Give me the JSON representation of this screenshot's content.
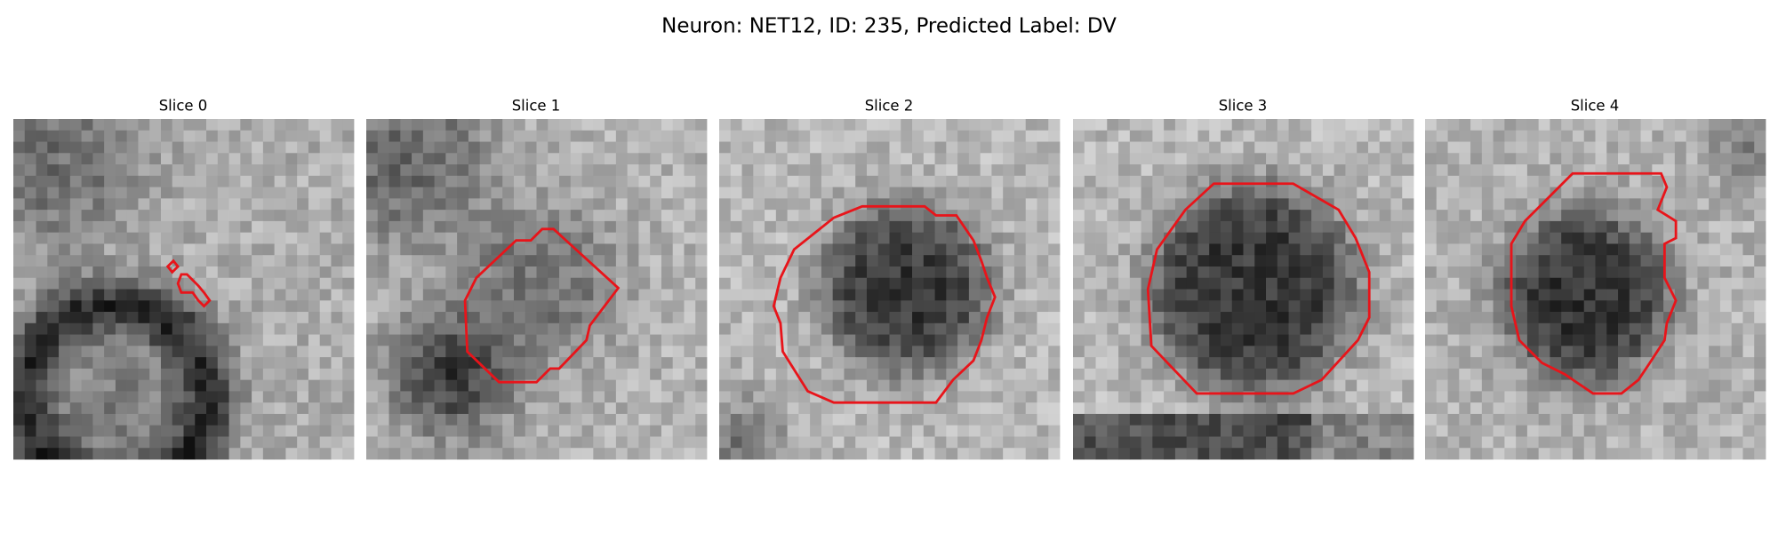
{
  "title": "Neuron: NET12, ID: 235, Predicted Label: DV",
  "panels": [
    {
      "title": "Slice 0"
    },
    {
      "title": "Slice 1"
    },
    {
      "title": "Slice 2"
    },
    {
      "title": "Slice 3"
    },
    {
      "title": "Slice 4"
    }
  ]
}
